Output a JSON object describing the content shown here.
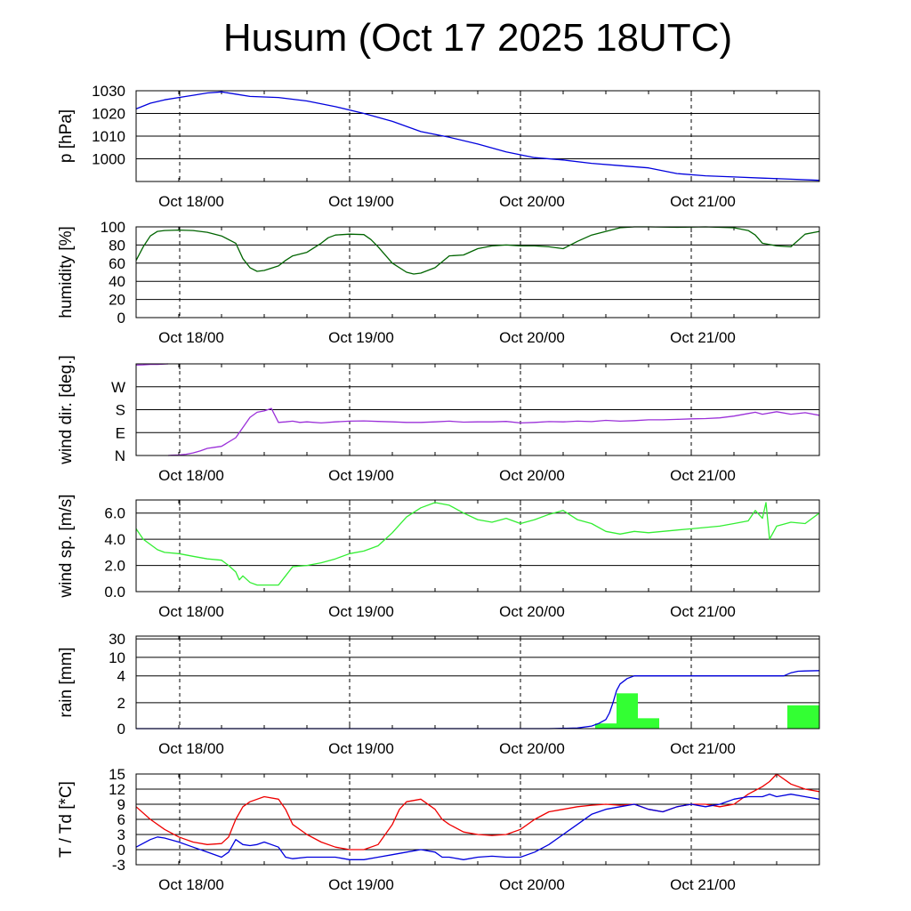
{
  "title": "Husum (Oct 17 2025 18UTC)",
  "colors": {
    "pressure": "#0000dd",
    "humidity": "#006400",
    "wind_dir": "#9b30d9",
    "wind_speed": "#33ee33",
    "rain_line": "#0000dd",
    "rain_bar": "#33ff33",
    "temperature": "#ee0000",
    "dewpoint": "#0000dd",
    "grid": "#000000"
  },
  "chart_data": [
    {
      "type": "line",
      "id": "pressure",
      "ylabel": "p [hPa]",
      "xticks": [
        "Oct 18/00",
        "Oct 19/00",
        "Oct 20/00",
        "Oct 21/00"
      ],
      "xlim": [
        0,
        96
      ],
      "ylim": [
        990,
        1030
      ],
      "yticks": [
        {
          "v": 1000,
          "label": "1000"
        },
        {
          "v": 1010,
          "label": "1010"
        },
        {
          "v": 1020,
          "label": "1020"
        },
        {
          "v": 1030,
          "label": "1030"
        }
      ],
      "series": [
        {
          "key": "pressure",
          "x": [
            0,
            2,
            4,
            6,
            8,
            10,
            12,
            14,
            16,
            20,
            24,
            28,
            32,
            36,
            40,
            44,
            48,
            52,
            56,
            60,
            64,
            68,
            72,
            76,
            80,
            84,
            88,
            92,
            96
          ],
          "y": [
            1022,
            1024.5,
            1026,
            1027,
            1028,
            1029,
            1029.5,
            1028.5,
            1027.5,
            1027,
            1025.5,
            1023,
            1020,
            1016.5,
            1012,
            1009.5,
            1006.5,
            1003,
            1000.5,
            999.5,
            998,
            997,
            996,
            993.5,
            992.5,
            992,
            991.5,
            991,
            990.5
          ]
        }
      ]
    },
    {
      "type": "line",
      "id": "humidity",
      "ylabel": "humidity [%]",
      "xticks": [
        "Oct 18/00",
        "Oct 19/00",
        "Oct 20/00",
        "Oct 21/00"
      ],
      "xlim": [
        0,
        96
      ],
      "ylim": [
        0,
        100
      ],
      "yticks": [
        {
          "v": 0,
          "label": "0"
        },
        {
          "v": 20,
          "label": "20"
        },
        {
          "v": 40,
          "label": "40"
        },
        {
          "v": 60,
          "label": "60"
        },
        {
          "v": 80,
          "label": "80"
        },
        {
          "v": 100,
          "label": "100"
        }
      ],
      "series": [
        {
          "key": "humidity",
          "x": [
            0,
            1,
            2,
            3,
            4,
            6,
            8,
            10,
            12,
            14,
            15,
            16,
            17,
            18,
            20,
            21,
            22,
            24,
            26,
            27,
            28,
            30,
            32,
            33,
            34,
            36,
            38,
            39,
            40,
            42,
            44,
            46,
            48,
            50,
            52,
            54,
            56,
            58,
            60,
            62,
            64,
            66,
            68,
            70,
            72,
            76,
            80,
            84,
            86,
            87,
            88,
            90,
            92,
            94,
            96
          ],
          "y": [
            63,
            78,
            90,
            95,
            96,
            96.5,
            96,
            94,
            90,
            82,
            65,
            55,
            51,
            52,
            57,
            63,
            68,
            72,
            82,
            88,
            91,
            92,
            91.5,
            86,
            78,
            60,
            50,
            48,
            49,
            55,
            68,
            69,
            76,
            79,
            80,
            79,
            79,
            78,
            76,
            84,
            91,
            95,
            99,
            100,
            100,
            99.5,
            100,
            99,
            96,
            91,
            82,
            79,
            78,
            92,
            95
          ]
        }
      ]
    },
    {
      "type": "line",
      "id": "wind_dir",
      "ylabel": "wind dir. [deg.]",
      "xticks": [
        "Oct 18/00",
        "Oct 19/00",
        "Oct 20/00",
        "Oct 21/00"
      ],
      "xlim": [
        0,
        96
      ],
      "ylim": [
        0,
        360
      ],
      "yticks": [
        {
          "v": 0,
          "label": "N"
        },
        {
          "v": 90,
          "label": "E"
        },
        {
          "v": 180,
          "label": "S"
        },
        {
          "v": 270,
          "label": "W"
        }
      ],
      "segments": [
        {
          "key": "wind_dir",
          "x": [
            0,
            1,
            2,
            3,
            4.5
          ],
          "y": [
            355,
            356,
            358,
            358,
            360
          ]
        },
        {
          "key": "wind_dir",
          "x": [
            4.5,
            5,
            6,
            7,
            8,
            9,
            10,
            11,
            12,
            14,
            16,
            17,
            18,
            19,
            20,
            21,
            22,
            23,
            24,
            26,
            28,
            30,
            32,
            34,
            36,
            38,
            40,
            42,
            44,
            46,
            48,
            50,
            52,
            54,
            56,
            58,
            60,
            62,
            64,
            66,
            68,
            70,
            72,
            74,
            76,
            78,
            80,
            82,
            84,
            86,
            87,
            88,
            90,
            92,
            94,
            96
          ],
          "y": [
            0,
            1,
            2,
            5,
            10,
            18,
            28,
            32,
            36,
            70,
            150,
            170,
            175,
            185,
            130,
            132,
            135,
            130,
            132,
            128,
            132,
            135,
            136,
            134,
            132,
            130,
            130,
            132,
            135,
            131,
            132,
            132,
            134,
            128,
            130,
            133,
            132,
            135,
            133,
            138,
            135,
            137,
            140,
            140,
            142,
            144,
            145,
            148,
            155,
            165,
            170,
            162,
            172,
            162,
            168,
            158
          ]
        }
      ]
    },
    {
      "type": "line",
      "id": "wind_speed",
      "ylabel": "wind sp. [m/s]",
      "xticks": [
        "Oct 18/00",
        "Oct 19/00",
        "Oct 20/00",
        "Oct 21/00"
      ],
      "xlim": [
        0,
        96
      ],
      "ylim": [
        0,
        7
      ],
      "yticks": [
        {
          "v": 0,
          "label": "0.0"
        },
        {
          "v": 2,
          "label": "2.0"
        },
        {
          "v": 4,
          "label": "4.0"
        },
        {
          "v": 6,
          "label": "6.0"
        }
      ],
      "series": [
        {
          "key": "wind_speed",
          "x": [
            0,
            1,
            2,
            3,
            4,
            6,
            8,
            10,
            12,
            13,
            14,
            14.5,
            15,
            16,
            17,
            18,
            20,
            21,
            22,
            24,
            26,
            28,
            30,
            32,
            34,
            36,
            38,
            40,
            42,
            44,
            46,
            48,
            50,
            52,
            54,
            56,
            58,
            60,
            62,
            64,
            66,
            68,
            70,
            72,
            74,
            76,
            78,
            80,
            82,
            84,
            86,
            87,
            88,
            88.5,
            89,
            90,
            92,
            94,
            96
          ],
          "y": [
            4.8,
            4.0,
            3.6,
            3.2,
            3.0,
            2.9,
            2.7,
            2.5,
            2.4,
            2.0,
            1.5,
            0.9,
            1.2,
            0.7,
            0.5,
            0.5,
            0.5,
            1.2,
            1.9,
            2.0,
            2.2,
            2.5,
            2.9,
            3.1,
            3.5,
            4.5,
            5.7,
            6.4,
            6.8,
            6.6,
            6.0,
            5.5,
            5.3,
            5.6,
            5.2,
            5.5,
            5.9,
            6.2,
            5.5,
            5.2,
            4.6,
            4.4,
            4.6,
            4.5,
            4.6,
            4.7,
            4.8,
            4.9,
            5.0,
            5.2,
            5.4,
            6.2,
            5.6,
            6.8,
            4.0,
            5.0,
            5.3,
            5.2,
            6.0
          ]
        }
      ]
    },
    {
      "type": "bar",
      "id": "rain",
      "ylabel": "rain [mm]",
      "xticks": [
        "Oct 18/00",
        "Oct 19/00",
        "Oct 20/00",
        "Oct 21/00"
      ],
      "xlim": [
        0,
        96
      ],
      "scale": "nonlinear",
      "yticks": [
        {
          "v": 0,
          "label": "0"
        },
        {
          "v": 2,
          "label": "2"
        },
        {
          "v": 4,
          "label": "4"
        },
        {
          "v": 10,
          "label": "10"
        },
        {
          "v": 30,
          "label": "30"
        }
      ],
      "bars": [
        {
          "x0": 64.5,
          "x1": 67.5,
          "value": 0.4
        },
        {
          "x0": 67.5,
          "x1": 70.5,
          "value": 2.7
        },
        {
          "x0": 70.5,
          "x1": 73.5,
          "value": 0.8
        },
        {
          "x0": 91.5,
          "x1": 96,
          "value": 1.8
        }
      ],
      "cumulative": {
        "key": "rain_line",
        "x": [
          0,
          58,
          62,
          64,
          65,
          66,
          66.5,
          67,
          67.5,
          68,
          69,
          70,
          71,
          72,
          73,
          80,
          86,
          91,
          92,
          93,
          94,
          96
        ],
        "y": [
          0,
          0,
          0.05,
          0.2,
          0.4,
          0.7,
          1.2,
          2.0,
          2.9,
          3.4,
          3.8,
          4.0,
          4.0,
          4.0,
          4.0,
          4.0,
          4.0,
          4.0,
          5.0,
          5.5,
          5.6,
          5.7
        ]
      }
    },
    {
      "type": "line",
      "id": "temp",
      "ylabel": "T / Td [*C]",
      "xticks": [
        "Oct 18/00",
        "Oct 19/00",
        "Oct 20/00",
        "Oct 21/00"
      ],
      "xlim": [
        0,
        96
      ],
      "ylim": [
        -3,
        15
      ],
      "yticks": [
        {
          "v": -3,
          "label": "-3"
        },
        {
          "v": 0,
          "label": "0"
        },
        {
          "v": 3,
          "label": "3"
        },
        {
          "v": 6,
          "label": "6"
        },
        {
          "v": 9,
          "label": "9"
        },
        {
          "v": 12,
          "label": "12"
        },
        {
          "v": 15,
          "label": "15"
        }
      ],
      "series": [
        {
          "name": "T",
          "key": "temperature",
          "x": [
            0,
            2,
            4,
            6,
            8,
            10,
            12,
            13,
            14,
            15,
            16,
            18,
            20,
            21,
            22,
            24,
            26,
            28,
            30,
            32,
            34,
            36,
            37,
            38,
            40,
            42,
            43,
            44,
            46,
            48,
            50,
            52,
            54,
            56,
            58,
            60,
            62,
            64,
            66,
            68,
            70,
            72,
            74,
            76,
            78,
            80,
            82,
            84,
            86,
            88,
            89,
            90,
            92,
            94,
            96
          ],
          "y": [
            8.5,
            6,
            4,
            2.5,
            1.5,
            1,
            1.2,
            2.5,
            6,
            8.5,
            9.5,
            10.5,
            10,
            8,
            5,
            3,
            1.5,
            0.5,
            0,
            0,
            1,
            5,
            8,
            9.5,
            10,
            8,
            6,
            5,
            3.5,
            3,
            2.8,
            3,
            4,
            6,
            7.5,
            8,
            8.5,
            8.8,
            9,
            8.8,
            9,
            8,
            7.5,
            8.5,
            9,
            9,
            8.5,
            9,
            11,
            12.5,
            13.5,
            15,
            13,
            12,
            11.5
          ]
        },
        {
          "name": "Td",
          "key": "dewpoint",
          "x": [
            0,
            2,
            3,
            4,
            6,
            8,
            10,
            12,
            13,
            14,
            15,
            16,
            17,
            18,
            20,
            21,
            22,
            24,
            26,
            28,
            30,
            32,
            34,
            36,
            38,
            40,
            42,
            43,
            44,
            46,
            48,
            50,
            52,
            54,
            56,
            58,
            60,
            62,
            64,
            66,
            68,
            70,
            72,
            74,
            76,
            78,
            80,
            82,
            84,
            86,
            88,
            89,
            90,
            92,
            94,
            96
          ],
          "y": [
            0.5,
            2,
            2.5,
            2.3,
            1.5,
            0.5,
            -0.5,
            -1.5,
            -0.5,
            2,
            1,
            0.8,
            1,
            1.5,
            0.5,
            -1.5,
            -1.8,
            -1.5,
            -1.5,
            -1.5,
            -2,
            -2,
            -1.5,
            -1,
            -0.5,
            0,
            -0.5,
            -1.5,
            -1.5,
            -2,
            -1.5,
            -1.3,
            -1.5,
            -1.5,
            -0.5,
            1,
            3,
            5,
            7,
            8,
            8.5,
            9,
            8,
            7.5,
            8.5,
            9,
            8.5,
            9,
            10,
            10.5,
            10.5,
            11,
            10.5,
            11,
            10.5,
            10
          ]
        }
      ]
    }
  ]
}
